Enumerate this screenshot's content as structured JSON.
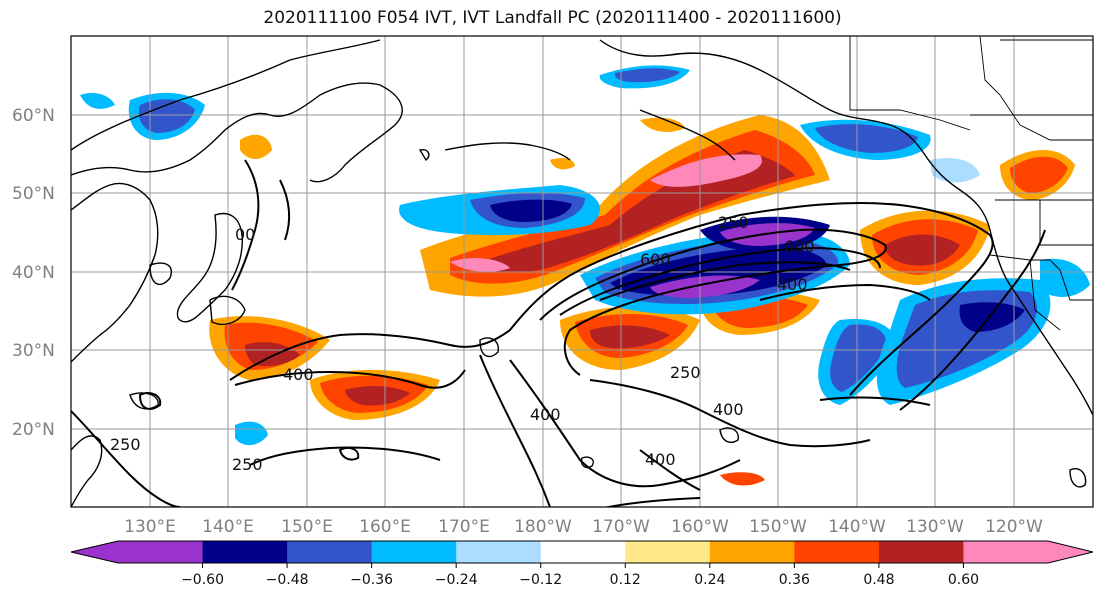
{
  "title": "2020111100 F054 IVT, IVT Landfall PC (2020111400 - 2020111600)",
  "lat_labels": [
    "60°N",
    "50°N",
    "40°N",
    "30°N",
    "20°N"
  ],
  "lon_labels": [
    "130°E",
    "140°E",
    "150°E",
    "160°E",
    "170°E",
    "180°W",
    "170°W",
    "160°W",
    "150°W",
    "140°W",
    "130°W",
    "120°W"
  ],
  "contour_labels": [
    "250",
    "600",
    "600",
    "400",
    "250",
    "400",
    "400",
    "400",
    "250",
    "250",
    "400",
    "00"
  ],
  "colorbar": {
    "colors": [
      "#9933cc",
      "#000088",
      "#3355cc",
      "#00bbff",
      "#aaddff",
      "#ffffff",
      "#ffe888",
      "#ffa500",
      "#ff4400",
      "#b22222",
      "#ff88bb"
    ],
    "tick_labels": [
      "−0.60",
      "−0.48",
      "−0.36",
      "−0.24",
      "−0.12",
      "0.12",
      "0.24",
      "0.36",
      "0.48",
      "0.60"
    ]
  },
  "map": {
    "projection": "PlateCarree",
    "lon_range": [
      "120°E",
      "135°W"
    ],
    "lat_range": [
      "10°N",
      "70°N"
    ],
    "gridlines": true,
    "fields": [
      "IVT contours (black)",
      "IVT Landfall PC (filled)"
    ]
  }
}
